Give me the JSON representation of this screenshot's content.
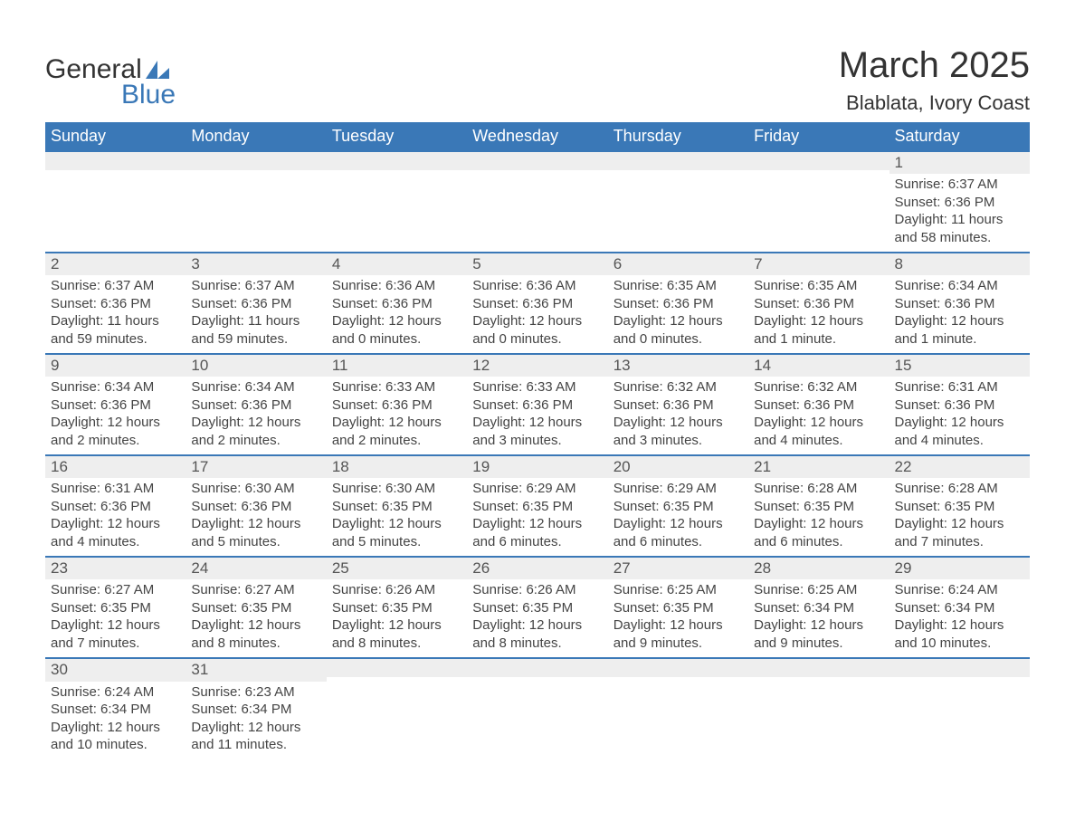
{
  "brand": {
    "name_main": "General",
    "name_accent": "Blue",
    "accent_color": "#3a78b7"
  },
  "title": "March 2025",
  "location": "Blablata, Ivory Coast",
  "colors": {
    "header_bg": "#3a78b7",
    "header_text": "#ffffff",
    "dayhead_bg": "#eeeeee",
    "text": "#333333",
    "row_border": "#3a78b7",
    "page_bg": "#ffffff"
  },
  "typography": {
    "title_fontsize": 40,
    "location_fontsize": 22,
    "header_fontsize": 18,
    "body_fontsize": 15
  },
  "weekdays": [
    "Sunday",
    "Monday",
    "Tuesday",
    "Wednesday",
    "Thursday",
    "Friday",
    "Saturday"
  ],
  "labels": {
    "sunrise": "Sunrise:",
    "sunset": "Sunset:",
    "daylight": "Daylight:"
  },
  "weeks": [
    [
      null,
      null,
      null,
      null,
      null,
      null,
      {
        "date": "1",
        "sunrise": "6:37 AM",
        "sunset": "6:36 PM",
        "daylight": "11 hours and 58 minutes."
      }
    ],
    [
      {
        "date": "2",
        "sunrise": "6:37 AM",
        "sunset": "6:36 PM",
        "daylight": "11 hours and 59 minutes."
      },
      {
        "date": "3",
        "sunrise": "6:37 AM",
        "sunset": "6:36 PM",
        "daylight": "11 hours and 59 minutes."
      },
      {
        "date": "4",
        "sunrise": "6:36 AM",
        "sunset": "6:36 PM",
        "daylight": "12 hours and 0 minutes."
      },
      {
        "date": "5",
        "sunrise": "6:36 AM",
        "sunset": "6:36 PM",
        "daylight": "12 hours and 0 minutes."
      },
      {
        "date": "6",
        "sunrise": "6:35 AM",
        "sunset": "6:36 PM",
        "daylight": "12 hours and 0 minutes."
      },
      {
        "date": "7",
        "sunrise": "6:35 AM",
        "sunset": "6:36 PM",
        "daylight": "12 hours and 1 minute."
      },
      {
        "date": "8",
        "sunrise": "6:34 AM",
        "sunset": "6:36 PM",
        "daylight": "12 hours and 1 minute."
      }
    ],
    [
      {
        "date": "9",
        "sunrise": "6:34 AM",
        "sunset": "6:36 PM",
        "daylight": "12 hours and 2 minutes."
      },
      {
        "date": "10",
        "sunrise": "6:34 AM",
        "sunset": "6:36 PM",
        "daylight": "12 hours and 2 minutes."
      },
      {
        "date": "11",
        "sunrise": "6:33 AM",
        "sunset": "6:36 PM",
        "daylight": "12 hours and 2 minutes."
      },
      {
        "date": "12",
        "sunrise": "6:33 AM",
        "sunset": "6:36 PM",
        "daylight": "12 hours and 3 minutes."
      },
      {
        "date": "13",
        "sunrise": "6:32 AM",
        "sunset": "6:36 PM",
        "daylight": "12 hours and 3 minutes."
      },
      {
        "date": "14",
        "sunrise": "6:32 AM",
        "sunset": "6:36 PM",
        "daylight": "12 hours and 4 minutes."
      },
      {
        "date": "15",
        "sunrise": "6:31 AM",
        "sunset": "6:36 PM",
        "daylight": "12 hours and 4 minutes."
      }
    ],
    [
      {
        "date": "16",
        "sunrise": "6:31 AM",
        "sunset": "6:36 PM",
        "daylight": "12 hours and 4 minutes."
      },
      {
        "date": "17",
        "sunrise": "6:30 AM",
        "sunset": "6:36 PM",
        "daylight": "12 hours and 5 minutes."
      },
      {
        "date": "18",
        "sunrise": "6:30 AM",
        "sunset": "6:35 PM",
        "daylight": "12 hours and 5 minutes."
      },
      {
        "date": "19",
        "sunrise": "6:29 AM",
        "sunset": "6:35 PM",
        "daylight": "12 hours and 6 minutes."
      },
      {
        "date": "20",
        "sunrise": "6:29 AM",
        "sunset": "6:35 PM",
        "daylight": "12 hours and 6 minutes."
      },
      {
        "date": "21",
        "sunrise": "6:28 AM",
        "sunset": "6:35 PM",
        "daylight": "12 hours and 6 minutes."
      },
      {
        "date": "22",
        "sunrise": "6:28 AM",
        "sunset": "6:35 PM",
        "daylight": "12 hours and 7 minutes."
      }
    ],
    [
      {
        "date": "23",
        "sunrise": "6:27 AM",
        "sunset": "6:35 PM",
        "daylight": "12 hours and 7 minutes."
      },
      {
        "date": "24",
        "sunrise": "6:27 AM",
        "sunset": "6:35 PM",
        "daylight": "12 hours and 8 minutes."
      },
      {
        "date": "25",
        "sunrise": "6:26 AM",
        "sunset": "6:35 PM",
        "daylight": "12 hours and 8 minutes."
      },
      {
        "date": "26",
        "sunrise": "6:26 AM",
        "sunset": "6:35 PM",
        "daylight": "12 hours and 8 minutes."
      },
      {
        "date": "27",
        "sunrise": "6:25 AM",
        "sunset": "6:35 PM",
        "daylight": "12 hours and 9 minutes."
      },
      {
        "date": "28",
        "sunrise": "6:25 AM",
        "sunset": "6:34 PM",
        "daylight": "12 hours and 9 minutes."
      },
      {
        "date": "29",
        "sunrise": "6:24 AM",
        "sunset": "6:34 PM",
        "daylight": "12 hours and 10 minutes."
      }
    ],
    [
      {
        "date": "30",
        "sunrise": "6:24 AM",
        "sunset": "6:34 PM",
        "daylight": "12 hours and 10 minutes."
      },
      {
        "date": "31",
        "sunrise": "6:23 AM",
        "sunset": "6:34 PM",
        "daylight": "12 hours and 11 minutes."
      },
      null,
      null,
      null,
      null,
      null
    ]
  ]
}
